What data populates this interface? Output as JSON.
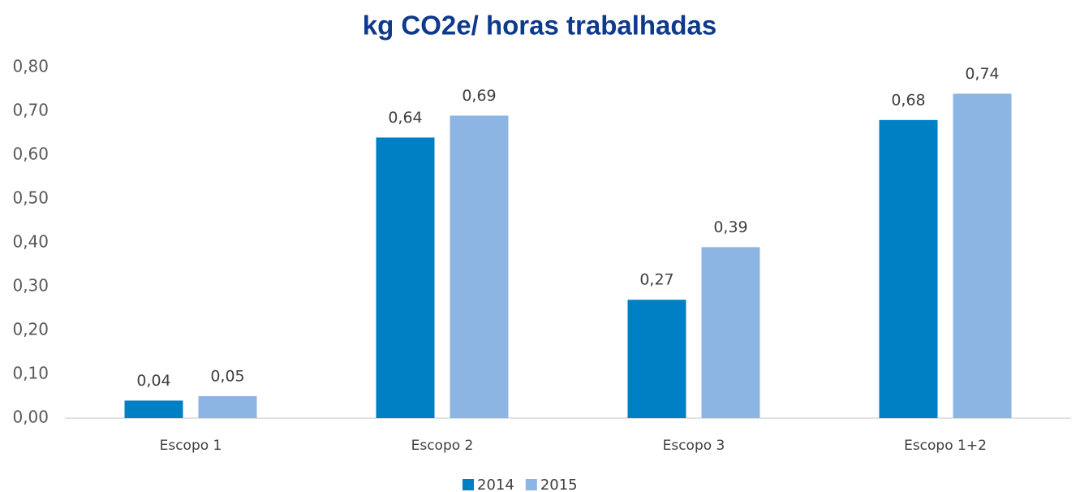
{
  "chart_data": {
    "type": "bar",
    "title": "kg CO2e/ horas trabalhadas",
    "categories": [
      "Escopo 1",
      "Escopo 2",
      "Escopo 3",
      "Escopo 1+2"
    ],
    "series": [
      {
        "name": "2014",
        "color": "#0080c4",
        "values": [
          0.04,
          0.64,
          0.27,
          0.68
        ],
        "value_labels": [
          "0,04",
          "0,64",
          "0,27",
          "0,68"
        ]
      },
      {
        "name": "2015",
        "color": "#8cb5e3",
        "values": [
          0.05,
          0.69,
          0.39,
          0.74
        ],
        "value_labels": [
          "0,05",
          "0,69",
          "0,39",
          "0,74"
        ]
      }
    ],
    "ylim": [
      0,
      0.8
    ],
    "yticks": [
      {
        "value": 0,
        "label": "0,00"
      },
      {
        "value": 0.1,
        "label": "0,10"
      },
      {
        "value": 0.2,
        "label": "0,20"
      },
      {
        "value": 0.3,
        "label": "0,30"
      },
      {
        "value": 0.4,
        "label": "0,40"
      },
      {
        "value": 0.5,
        "label": "0,50"
      },
      {
        "value": 0.6,
        "label": "0,60"
      },
      {
        "value": 0.7,
        "label": "0,70"
      },
      {
        "value": 0.8,
        "label": "0,80"
      }
    ],
    "grid": false,
    "legend": "bottom"
  }
}
